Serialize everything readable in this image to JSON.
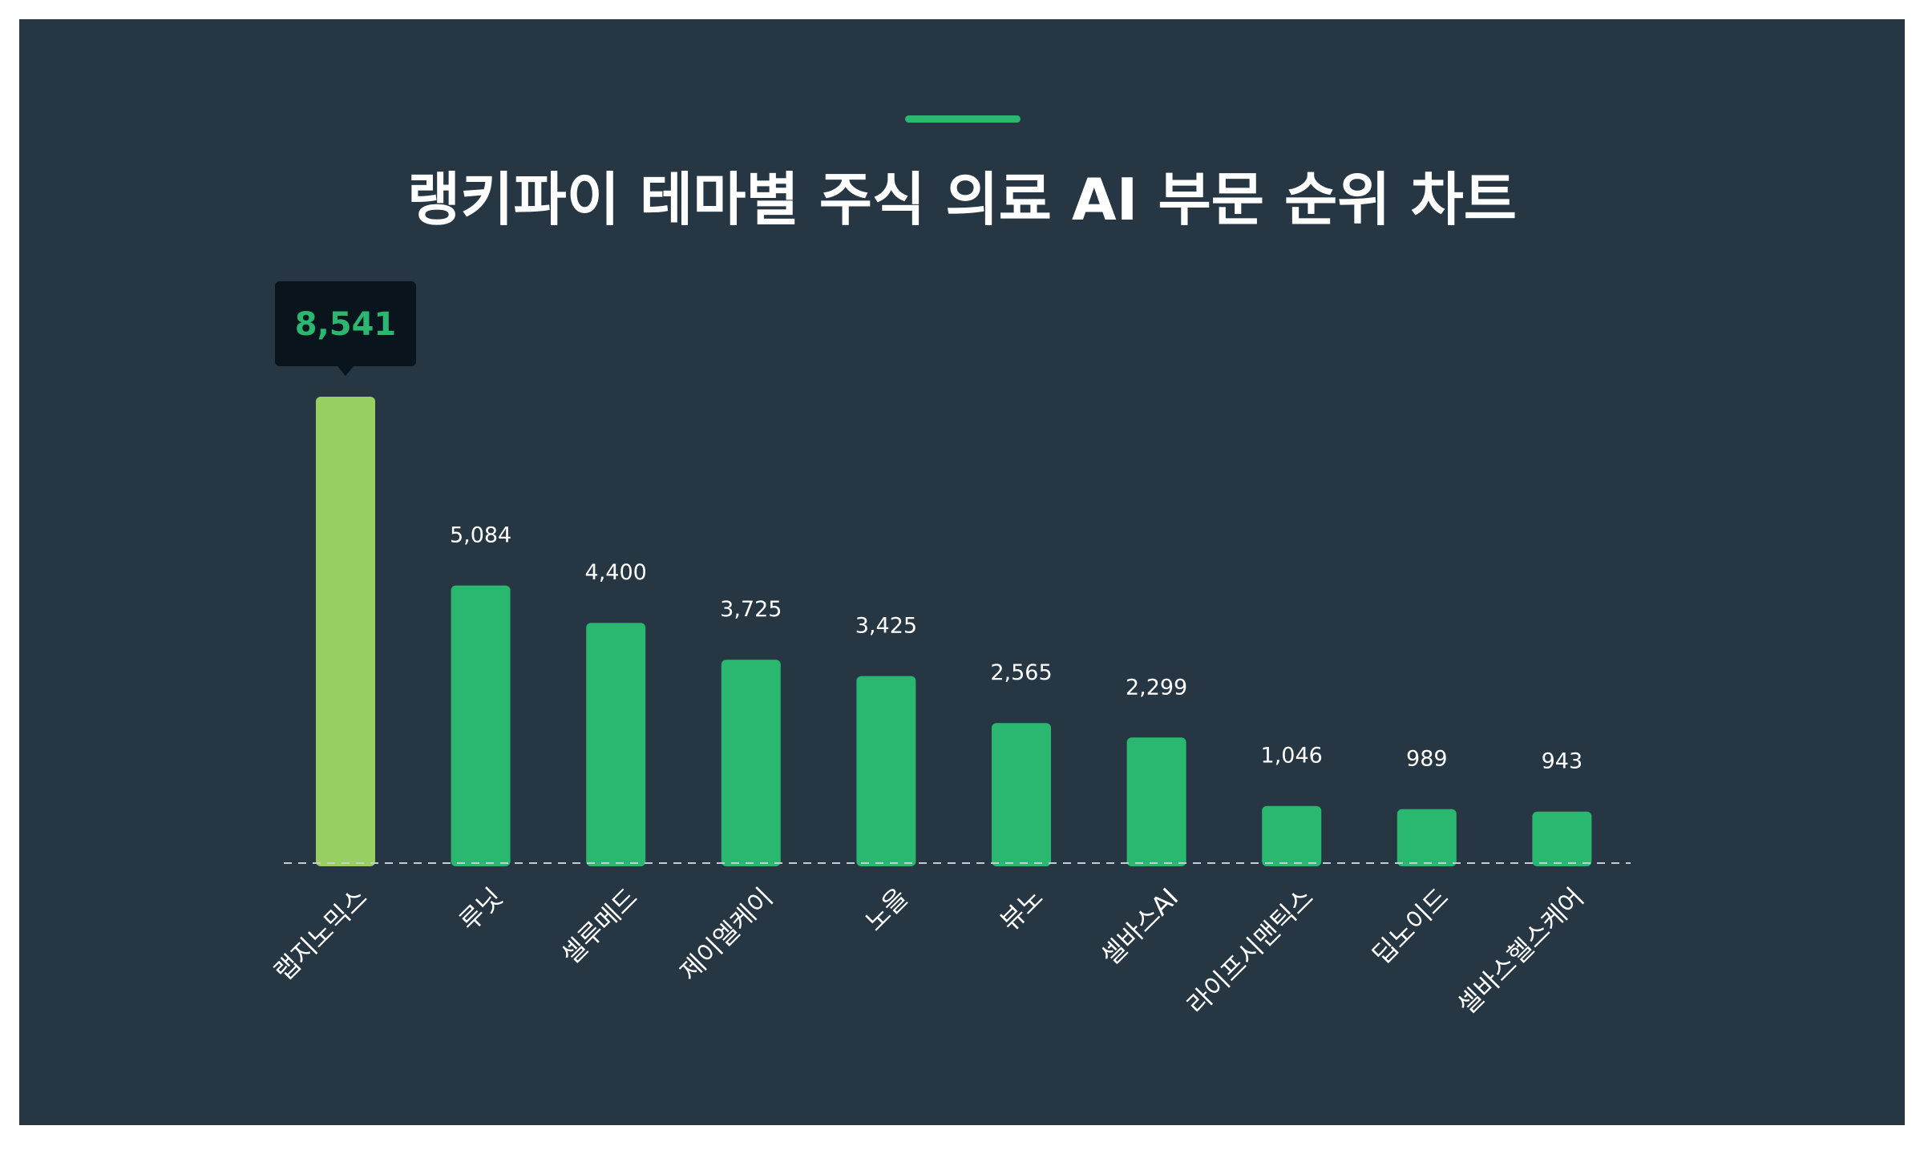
{
  "title": "랭키파이 테마별 주식 의료 AI 부문 순위 차트",
  "colors": {
    "background": "#263642",
    "accent": "#2ab76f",
    "highlight_bar": "#97cf63",
    "bar": "#2ab76f",
    "tooltip_bg": "#09141c",
    "baseline": "#c8cdd2"
  },
  "chart_data": {
    "type": "bar",
    "title": "랭키파이 테마별 주식 의료 AI 부문 순위 차트",
    "categories": [
      "랩지노믹스",
      "루닛",
      "셀루메드",
      "제이엘케이",
      "노을",
      "뷰노",
      "셀바스AI",
      "라이프시맨틱스",
      "딥노이드",
      "셀바스헬스케어"
    ],
    "values": [
      8541,
      5084,
      4400,
      3725,
      3425,
      2565,
      2299,
      1046,
      989,
      943
    ],
    "value_labels": [
      "8,541",
      "5,084",
      "4,400",
      "3,725",
      "3,425",
      "2,565",
      "2,299",
      "1,046",
      "989",
      "943"
    ],
    "highlighted_index": 0,
    "xlabel": "",
    "ylabel": "",
    "ylim": [
      0,
      8541
    ],
    "grid": false,
    "legend": "none"
  }
}
